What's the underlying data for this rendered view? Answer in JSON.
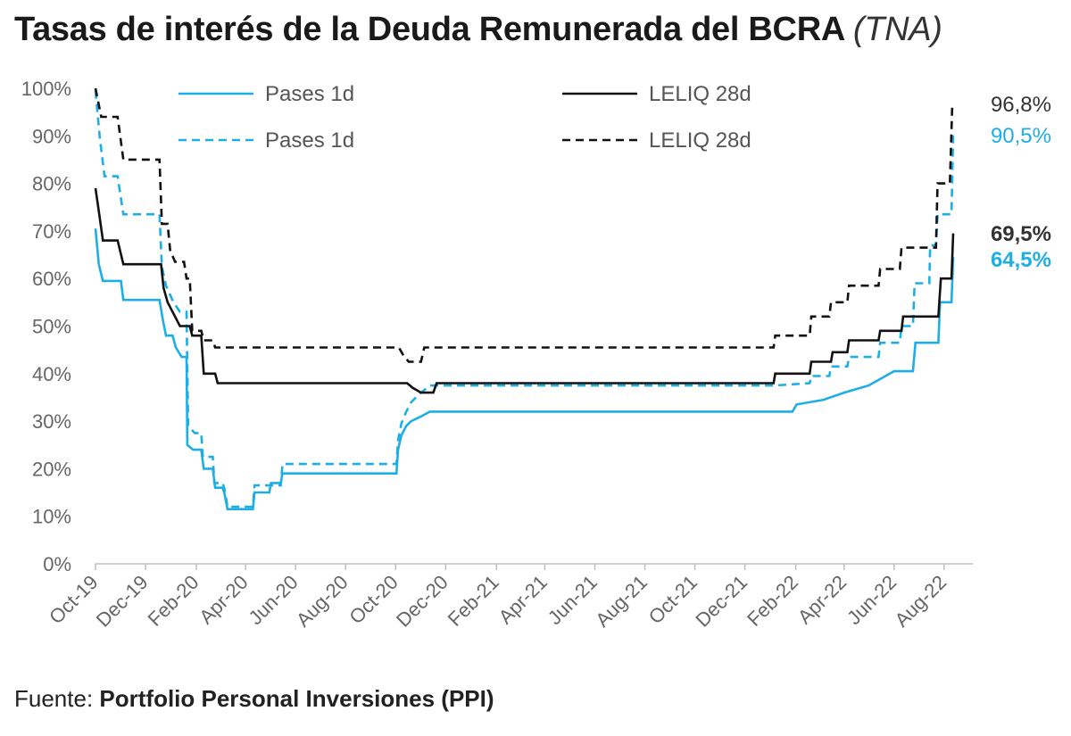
{
  "title": "Tasas de interés de la Deuda Remunerada del BCRA",
  "title_suffix": "(TNA)",
  "source_label": "Fuente:",
  "source_name": "Portfolio Personal Inversiones (PPI)",
  "chart_data": {
    "type": "line",
    "title": "Tasas de interés de la Deuda Remunerada del BCRA (TNA)",
    "xlabel": "",
    "ylabel": "",
    "ylim": [
      0,
      100
    ],
    "yticks": [
      0,
      10,
      20,
      30,
      40,
      50,
      60,
      70,
      80,
      90,
      100
    ],
    "ytick_labels": [
      "0%",
      "10%",
      "20%",
      "30%",
      "40%",
      "50%",
      "60%",
      "70%",
      "80%",
      "90%",
      "100%"
    ],
    "xlim": [
      "2019-10-01",
      "2022-09-05"
    ],
    "xtick_labels": [
      "Oct-19",
      "Dec-19",
      "Feb-20",
      "Apr-20",
      "Jun-20",
      "Aug-20",
      "Oct-20",
      "Dec-20",
      "Feb-21",
      "Apr-21",
      "Jun-21",
      "Aug-21",
      "Oct-21",
      "Dec-21",
      "Feb-22",
      "Apr-22",
      "Jun-22",
      "Aug-22"
    ],
    "xtick_dates": [
      "2019-10-01",
      "2019-12-01",
      "2020-02-01",
      "2020-04-01",
      "2020-06-01",
      "2020-08-01",
      "2020-10-01",
      "2020-12-01",
      "2021-02-01",
      "2021-04-01",
      "2021-06-01",
      "2021-08-01",
      "2021-10-01",
      "2021-12-01",
      "2022-02-01",
      "2022-04-01",
      "2022-06-01",
      "2022-08-01"
    ],
    "grid": false,
    "legend": "top",
    "legend_entries": [
      "Pases 1d",
      "LELIQ 28d",
      "Pases 1d",
      "LELIQ 28d"
    ],
    "end_labels": [
      "96,8%",
      "90,5%",
      "69,5%",
      "64,5%"
    ],
    "series": [
      {
        "name": "Pases 1d",
        "color": "#1eaee6",
        "dash": "solid",
        "end_label": "64,5%",
        "points": [
          [
            "2019-10-01",
            70.5
          ],
          [
            "2019-10-05",
            63.0
          ],
          [
            "2019-10-10",
            59.5
          ],
          [
            "2019-11-01",
            59.5
          ],
          [
            "2019-11-04",
            55.5
          ],
          [
            "2019-12-18",
            55.5
          ],
          [
            "2019-12-22",
            51.5
          ],
          [
            "2019-12-26",
            48.0
          ],
          [
            "2020-01-03",
            48.0
          ],
          [
            "2020-01-07",
            45.5
          ],
          [
            "2020-01-14",
            43.5
          ],
          [
            "2020-01-20",
            43.5
          ],
          [
            "2020-01-21",
            25.0
          ],
          [
            "2020-01-28",
            24.0
          ],
          [
            "2020-02-07",
            24.0
          ],
          [
            "2020-02-10",
            20.0
          ],
          [
            "2020-02-21",
            20.0
          ],
          [
            "2020-02-24",
            16.0
          ],
          [
            "2020-03-04",
            16.0
          ],
          [
            "2020-03-06",
            15.0
          ],
          [
            "2020-03-10",
            11.5
          ],
          [
            "2020-04-10",
            11.5
          ],
          [
            "2020-04-12",
            15.0
          ],
          [
            "2020-04-30",
            15.0
          ],
          [
            "2020-05-02",
            17.0
          ],
          [
            "2020-05-14",
            17.0
          ],
          [
            "2020-05-16",
            19.0
          ],
          [
            "2020-10-02",
            19.0
          ],
          [
            "2020-10-04",
            24.0
          ],
          [
            "2020-10-08",
            27.0
          ],
          [
            "2020-10-14",
            29.0
          ],
          [
            "2020-10-20",
            30.0
          ],
          [
            "2020-11-01",
            31.0
          ],
          [
            "2020-11-12",
            32.0
          ],
          [
            "2022-01-28",
            32.0
          ],
          [
            "2022-02-02",
            33.5
          ],
          [
            "2022-03-07",
            34.5
          ],
          [
            "2022-04-01",
            36.0
          ],
          [
            "2022-05-01",
            37.5
          ],
          [
            "2022-06-01",
            40.5
          ],
          [
            "2022-06-24",
            40.5
          ],
          [
            "2022-06-27",
            46.5
          ],
          [
            "2022-07-25",
            46.5
          ],
          [
            "2022-07-27",
            55.0
          ],
          [
            "2022-08-10",
            55.0
          ],
          [
            "2022-08-12",
            64.5
          ]
        ]
      },
      {
        "name": "Pases 1d",
        "color": "#1eaee6",
        "dash": "dashed",
        "end_label": "90,5%",
        "points": [
          [
            "2019-10-01",
            99.5
          ],
          [
            "2019-10-06",
            90.0
          ],
          [
            "2019-10-12",
            81.5
          ],
          [
            "2019-10-28",
            81.5
          ],
          [
            "2019-11-04",
            73.5
          ],
          [
            "2019-12-18",
            73.5
          ],
          [
            "2019-12-21",
            62.5
          ],
          [
            "2019-12-26",
            58.5
          ],
          [
            "2020-01-04",
            55.0
          ],
          [
            "2020-01-12",
            53.0
          ],
          [
            "2020-01-20",
            53.0
          ],
          [
            "2020-01-22",
            29.0
          ],
          [
            "2020-01-30",
            27.5
          ],
          [
            "2020-02-07",
            27.5
          ],
          [
            "2020-02-09",
            22.5
          ],
          [
            "2020-02-21",
            22.5
          ],
          [
            "2020-02-23",
            17.0
          ],
          [
            "2020-03-04",
            17.0
          ],
          [
            "2020-03-06",
            16.0
          ],
          [
            "2020-03-10",
            12.0
          ],
          [
            "2020-04-10",
            12.0
          ],
          [
            "2020-04-12",
            16.5
          ],
          [
            "2020-05-14",
            16.5
          ],
          [
            "2020-05-16",
            21.0
          ],
          [
            "2020-10-02",
            21.0
          ],
          [
            "2020-10-04",
            26.0
          ],
          [
            "2020-10-08",
            29.5
          ],
          [
            "2020-10-14",
            32.0
          ],
          [
            "2020-10-20",
            34.0
          ],
          [
            "2020-11-01",
            36.0
          ],
          [
            "2020-11-12",
            37.5
          ],
          [
            "2022-01-05",
            37.5
          ],
          [
            "2022-01-07",
            37.5
          ],
          [
            "2022-02-18",
            38.0
          ],
          [
            "2022-02-20",
            39.5
          ],
          [
            "2022-03-14",
            39.5
          ],
          [
            "2022-03-16",
            41.5
          ],
          [
            "2022-04-05",
            41.5
          ],
          [
            "2022-04-07",
            43.5
          ],
          [
            "2022-05-13",
            43.5
          ],
          [
            "2022-05-15",
            46.5
          ],
          [
            "2022-06-08",
            46.5
          ],
          [
            "2022-06-10",
            50.0
          ],
          [
            "2022-06-24",
            50.0
          ],
          [
            "2022-06-26",
            59.0
          ],
          [
            "2022-07-14",
            59.0
          ],
          [
            "2022-07-15",
            67.0
          ],
          [
            "2022-07-22",
            67.0
          ],
          [
            "2022-07-24",
            73.5
          ],
          [
            "2022-08-10",
            73.5
          ],
          [
            "2022-08-12",
            90.5
          ]
        ]
      },
      {
        "name": "LELIQ 28d",
        "color": "#111111",
        "dash": "solid",
        "end_label": "69,5%",
        "points": [
          [
            "2019-10-01",
            79.0
          ],
          [
            "2019-10-06",
            73.0
          ],
          [
            "2019-10-10",
            68.0
          ],
          [
            "2019-10-28",
            68.0
          ],
          [
            "2019-11-04",
            63.0
          ],
          [
            "2019-12-20",
            63.0
          ],
          [
            "2019-12-23",
            58.0
          ],
          [
            "2019-12-28",
            55.0
          ],
          [
            "2020-01-06",
            52.0
          ],
          [
            "2020-01-12",
            50.0
          ],
          [
            "2020-01-24",
            50.0
          ],
          [
            "2020-01-27",
            48.0
          ],
          [
            "2020-02-07",
            48.0
          ],
          [
            "2020-02-10",
            40.0
          ],
          [
            "2020-02-24",
            40.0
          ],
          [
            "2020-02-27",
            38.0
          ],
          [
            "2020-10-15",
            38.0
          ],
          [
            "2020-10-22",
            37.0
          ],
          [
            "2020-11-01",
            36.0
          ],
          [
            "2020-11-16",
            36.0
          ],
          [
            "2020-11-20",
            38.0
          ],
          [
            "2022-01-05",
            38.0
          ],
          [
            "2022-01-07",
            40.0
          ],
          [
            "2022-02-18",
            40.0
          ],
          [
            "2022-02-20",
            42.5
          ],
          [
            "2022-03-16",
            42.5
          ],
          [
            "2022-03-18",
            44.5
          ],
          [
            "2022-04-05",
            44.5
          ],
          [
            "2022-04-07",
            47.0
          ],
          [
            "2022-05-13",
            47.0
          ],
          [
            "2022-05-15",
            49.0
          ],
          [
            "2022-06-10",
            49.0
          ],
          [
            "2022-06-12",
            52.0
          ],
          [
            "2022-07-25",
            52.0
          ],
          [
            "2022-07-28",
            60.0
          ],
          [
            "2022-08-10",
            60.0
          ],
          [
            "2022-08-12",
            69.5
          ]
        ]
      },
      {
        "name": "LELIQ 28d",
        "color": "#111111",
        "dash": "dashed",
        "end_label": "96,8%",
        "points": [
          [
            "2019-10-01",
            100.0
          ],
          [
            "2019-10-08",
            94.0
          ],
          [
            "2019-10-28",
            94.0
          ],
          [
            "2019-11-04",
            85.0
          ],
          [
            "2019-12-18",
            85.0
          ],
          [
            "2019-12-21",
            71.5
          ],
          [
            "2019-12-28",
            71.5
          ],
          [
            "2019-12-31",
            66.0
          ],
          [
            "2020-01-06",
            63.5
          ],
          [
            "2020-01-17",
            63.5
          ],
          [
            "2020-01-20",
            60.0
          ],
          [
            "2020-01-24",
            60.0
          ],
          [
            "2020-01-27",
            49.0
          ],
          [
            "2020-02-07",
            49.0
          ],
          [
            "2020-02-10",
            47.0
          ],
          [
            "2020-02-21",
            47.0
          ],
          [
            "2020-02-24",
            45.5
          ],
          [
            "2020-10-05",
            45.5
          ],
          [
            "2020-10-10",
            44.0
          ],
          [
            "2020-10-17",
            42.5
          ],
          [
            "2020-11-01",
            42.5
          ],
          [
            "2020-11-05",
            45.5
          ],
          [
            "2022-01-05",
            45.5
          ],
          [
            "2022-01-07",
            48.0
          ],
          [
            "2022-02-18",
            48.0
          ],
          [
            "2022-02-20",
            52.0
          ],
          [
            "2022-03-14",
            52.0
          ],
          [
            "2022-03-16",
            55.0
          ],
          [
            "2022-04-05",
            55.0
          ],
          [
            "2022-04-07",
            58.5
          ],
          [
            "2022-05-13",
            58.5
          ],
          [
            "2022-05-15",
            62.0
          ],
          [
            "2022-06-08",
            62.0
          ],
          [
            "2022-06-10",
            66.5
          ],
          [
            "2022-07-22",
            66.5
          ],
          [
            "2022-07-24",
            80.0
          ],
          [
            "2022-08-08",
            80.0
          ],
          [
            "2022-08-11",
            96.8
          ]
        ]
      }
    ]
  }
}
